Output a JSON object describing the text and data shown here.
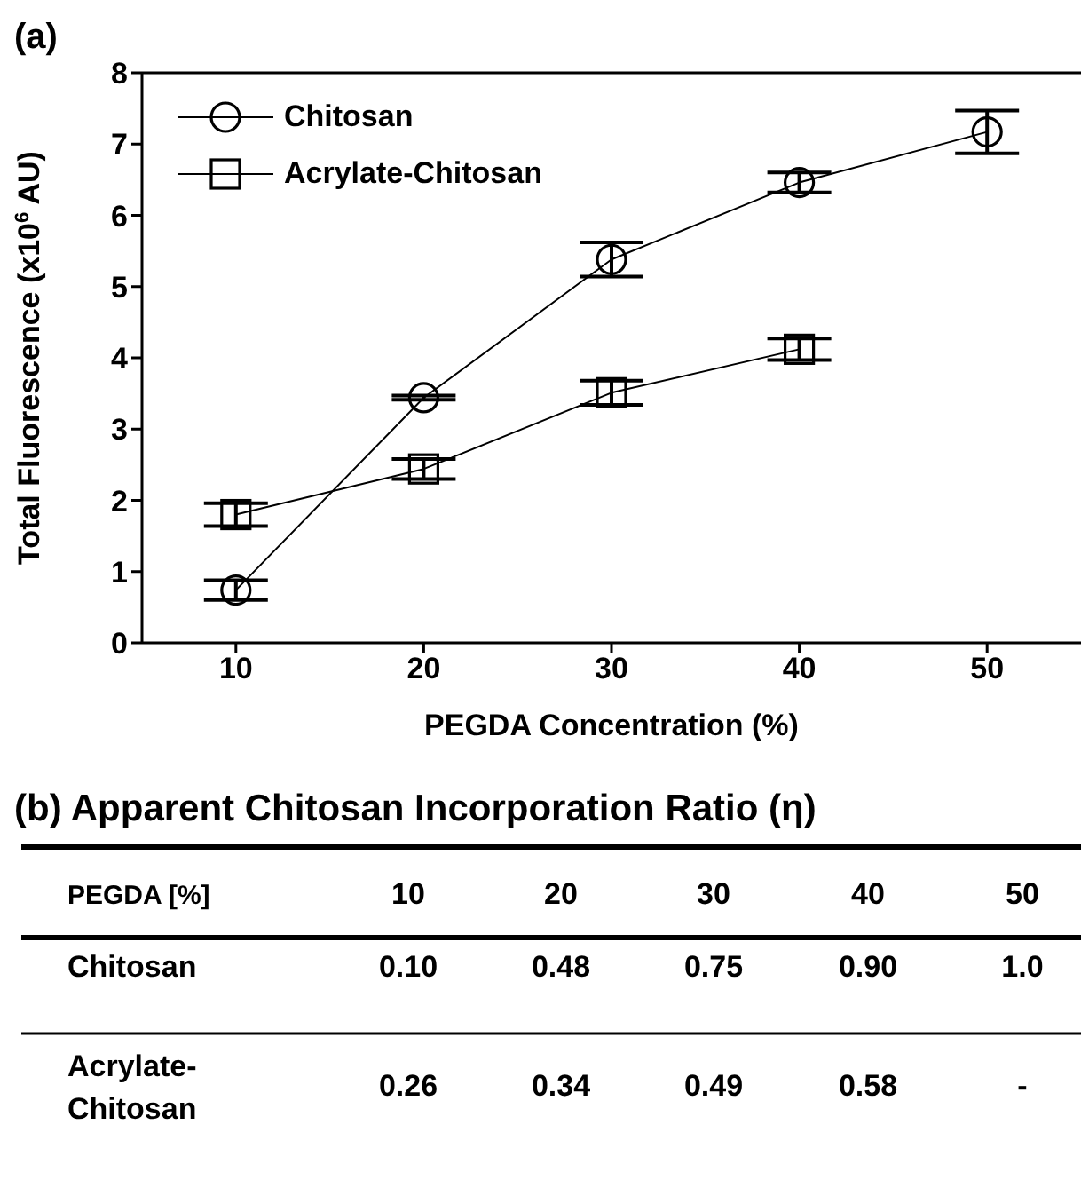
{
  "chart_data": [
    {
      "type": "line",
      "title": "(a)",
      "xlabel": "PEGDA Concentration (%)",
      "ylabel": "Total Fluorescence (x10$^{6}$ AU)",
      "x": [
        10,
        20,
        30,
        40,
        50
      ],
      "series": [
        {
          "name": "Chitosan",
          "color": "#000000",
          "marker": "circle",
          "values": [
            0.74,
            3.44,
            5.38,
            6.46,
            7.17
          ],
          "errors": [
            0.14,
            0.03,
            0.24,
            0.14,
            0.3
          ]
        },
        {
          "name": "Acrylate-Chitosan",
          "color": "#000000",
          "marker": "square",
          "values": [
            1.8,
            2.44,
            3.51,
            4.12,
            null
          ],
          "errors": [
            0.16,
            0.14,
            0.17,
            0.15,
            null
          ]
        }
      ],
      "xlim": [
        5,
        55
      ],
      "xticks": [
        10,
        20,
        30,
        40,
        50
      ],
      "ylim": [
        0,
        8
      ],
      "yticks": [
        0,
        1,
        2,
        3,
        4,
        5,
        6,
        7,
        8
      ],
      "grid": false,
      "legend": "top left",
      "line_style": "solid"
    },
    {
      "type": "heatmap",
      "title": "(b) Apparent Chitosan Incorporation Ratio (η)",
      "xlabel": "PEGDA [%]",
      "categories": [
        "10",
        "20",
        "30",
        "40",
        "50"
      ],
      "y_categories": [
        "Chitosan",
        "Acrylate-Chitosan"
      ],
      "cells": [
        [
          0.1,
          0.48,
          0.75,
          0.9,
          1.0
        ],
        [
          0.26,
          0.34,
          0.49,
          0.58,
          null
        ]
      ],
      "cell_labels": [
        [
          "0.10",
          "0.48",
          "0.75",
          "0.90",
          "1.0"
        ],
        [
          "0.26",
          "0.34",
          "0.49",
          "0.58",
          "-"
        ]
      ]
    }
  ]
}
